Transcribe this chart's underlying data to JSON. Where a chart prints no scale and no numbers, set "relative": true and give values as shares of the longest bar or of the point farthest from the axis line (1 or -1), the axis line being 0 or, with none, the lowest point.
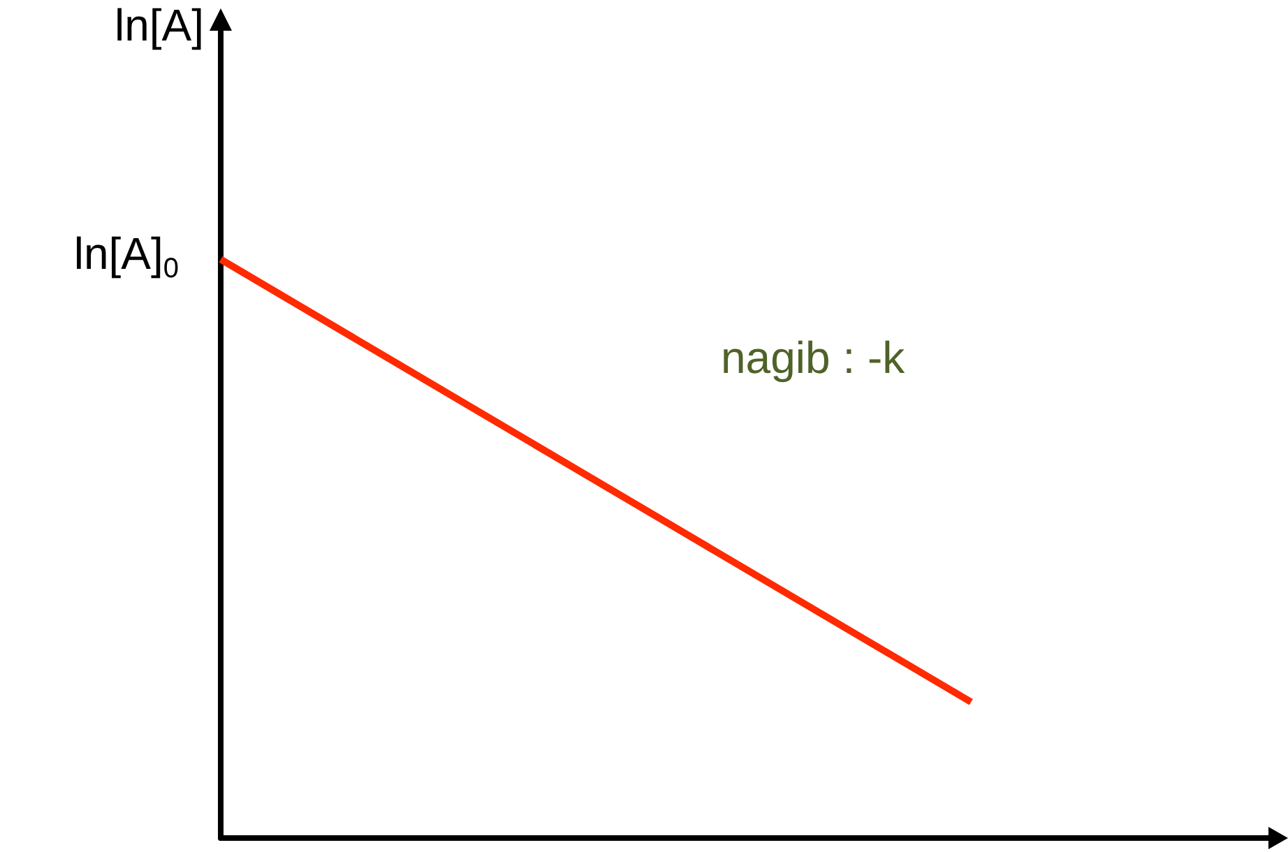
{
  "chart_data": {
    "type": "line",
    "relative": true,
    "ylabel": "ln[A]",
    "categories": [
      null,
      null,
      null,
      null,
      null,
      null,
      null,
      null
    ],
    "grid": false,
    "marker": "none",
    "line_style": "solid",
    "series": [
      {
        "color": "#ff2a00",
        "values": [
          1,
          null,
          null,
          null,
          null,
          0.235,
          null,
          null
        ]
      }
    ],
    "annotations": [
      "ln[A]$_{0}$",
      "nagib : -k"
    ]
  }
}
